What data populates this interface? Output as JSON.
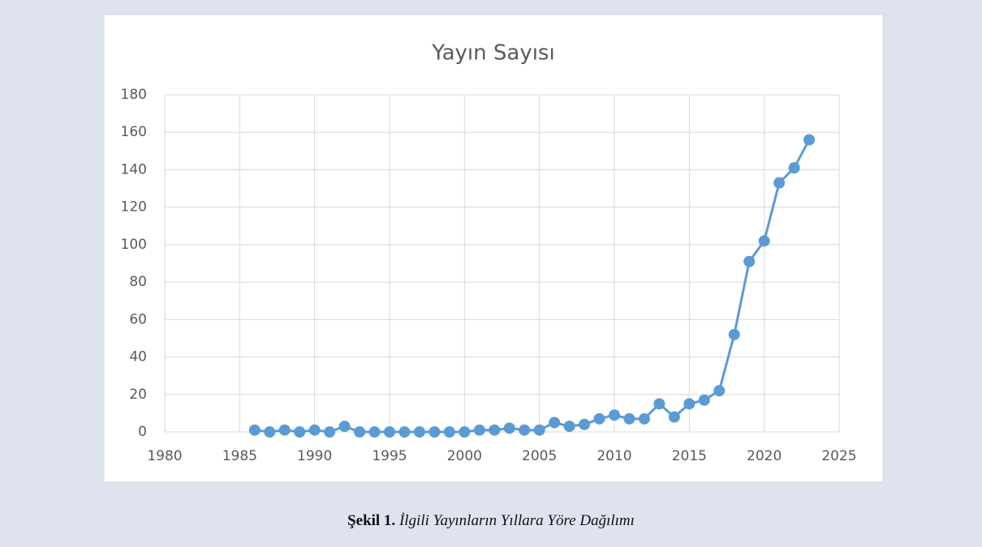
{
  "chart_data": {
    "type": "line",
    "title": "Yayın Sayısı",
    "x": [
      1986,
      1987,
      1988,
      1989,
      1990,
      1991,
      1992,
      1993,
      1994,
      1995,
      1996,
      1997,
      1998,
      1999,
      2000,
      2001,
      2002,
      2003,
      2004,
      2005,
      2006,
      2007,
      2008,
      2009,
      2010,
      2011,
      2012,
      2013,
      2014,
      2015,
      2016,
      2017,
      2018,
      2019,
      2020,
      2021,
      2022,
      2023
    ],
    "values": [
      1,
      0,
      1,
      0,
      1,
      0,
      3,
      0,
      0,
      0,
      0,
      0,
      0,
      0,
      0,
      1,
      1,
      2,
      1,
      1,
      5,
      3,
      4,
      7,
      9,
      7,
      7,
      15,
      8,
      15,
      17,
      22,
      52,
      91,
      102,
      133,
      141,
      156
    ],
    "color": "#5b9bd5",
    "xlim": [
      1980,
      2025
    ],
    "xticks": [
      1980,
      1985,
      1990,
      1995,
      2000,
      2005,
      2010,
      2015,
      2020,
      2025
    ],
    "ylim": [
      0,
      180
    ],
    "yticks": [
      0,
      20,
      40,
      60,
      80,
      100,
      120,
      140,
      160,
      180
    ],
    "grid": true
  },
  "caption": {
    "label": "Şekil 1.",
    "text": "İlgili Yayınların Yıllara Yöre Dağılımı"
  }
}
